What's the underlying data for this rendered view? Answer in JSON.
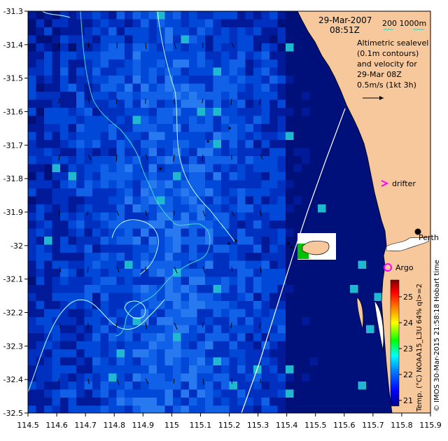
{
  "header": {
    "date": "29-Mar-2007",
    "time": "08:51Z",
    "depth_legend": "200  1000m"
  },
  "notes": {
    "line1": "Altimetric sealevel",
    "line2": "(0.1m contours)",
    "line3": "and velocity for",
    "line4": "29-Mar 08Z",
    "line5": "0.5m/s (1kt 3h)"
  },
  "places": {
    "perth": "Perth",
    "drifter": "drifter",
    "argo": "Argo"
  },
  "axes": {
    "x_ticks": [
      "114.5",
      "114.6",
      "114.7",
      "114.8",
      "114.9",
      "115",
      "115.1",
      "115.2",
      "115.3",
      "115.4",
      "115.5",
      "115.6",
      "115.7",
      "115.8",
      "115.9"
    ],
    "y_ticks": [
      "-31.3",
      "-31.4",
      "-31.5",
      "-31.6",
      "-31.7",
      "-31.8",
      "-31.9",
      "-32",
      "-32.1",
      "-32.2",
      "-32.3",
      "-32.4",
      "-32.5"
    ]
  },
  "colorbar": {
    "ticks": [
      "25",
      "24",
      "23",
      "22",
      "21"
    ],
    "label": "Temp. (°C) NOAA15_L3U 64% ql>=2",
    "colors": [
      "#000080",
      "#0000ff",
      "#0080ff",
      "#00ffff",
      "#00ff00",
      "#ffff00",
      "#ff8000",
      "#ff0000",
      "#800000"
    ]
  },
  "credit": "© IMOS 30-Mar-2015 21:58:18 Hobart time",
  "colors": {
    "land": "#f7c89b",
    "contour_200": "#40e0d0",
    "contour_1000": "#c0ffff"
  },
  "icons": {
    "velocity_arrows": "arrow-icon",
    "drifter": "magenta-chevron-icon",
    "argo": "magenta-circle-icon",
    "perth": "black-dot-icon"
  }
}
